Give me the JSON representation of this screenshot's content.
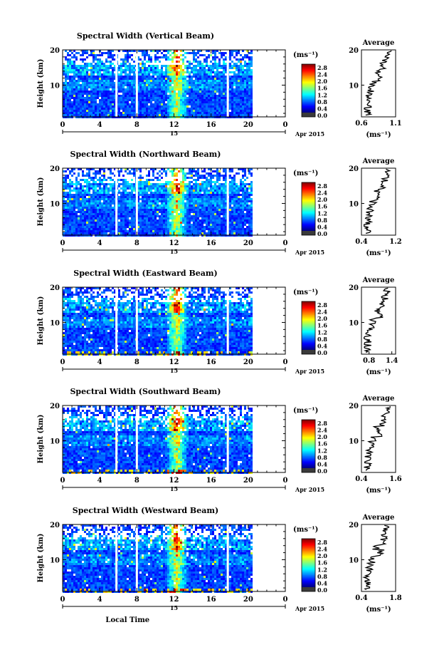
{
  "chart_data": [
    {
      "type": "heatmap",
      "title": "Spectral Width (Vertical Beam)",
      "ylabel": "Height (km)",
      "yticks": [
        "20",
        "10"
      ],
      "xticks": [
        "0",
        "4",
        "8",
        "12",
        "16",
        "20",
        "0"
      ],
      "xlim": [
        0,
        24
      ],
      "ylim": [
        1,
        20
      ],
      "gaps": [
        5.8,
        8.0,
        17.8
      ],
      "data_end": 20.3,
      "date_day": "15",
      "date_month": "Apr 2015",
      "colorbar": {
        "unit": "(ms⁻¹)",
        "ticks": [
          "2.8",
          "2.4",
          "2.0",
          "1.6",
          "1.2",
          "0.8",
          "0.4",
          "0.0"
        ]
      },
      "average": {
        "title": "Average",
        "unit": "(ms⁻¹)",
        "xticks": [
          "0.6",
          "1.1"
        ],
        "xlim": [
          0.6,
          1.1
        ],
        "yticks": [
          "20",
          "10"
        ]
      }
    },
    {
      "type": "heatmap",
      "title": "Spectral Width (Northward Beam)",
      "ylabel": "Height (km)",
      "yticks": [
        "20",
        "10"
      ],
      "xticks": [
        "0",
        "4",
        "8",
        "12",
        "16",
        "20",
        "0"
      ],
      "xlim": [
        0,
        24
      ],
      "ylim": [
        1,
        20
      ],
      "gaps": [
        5.8,
        8.0,
        17.8
      ],
      "data_end": 20.3,
      "date_day": "15",
      "date_month": "Apr 2015",
      "colorbar": {
        "unit": "(ms⁻¹)",
        "ticks": [
          "2.8",
          "2.4",
          "2.0",
          "1.6",
          "1.2",
          "0.8",
          "0.4",
          "0.0"
        ]
      },
      "average": {
        "title": "Average",
        "unit": "(ms⁻¹)",
        "xticks": [
          "0.4",
          "1.2"
        ],
        "xlim": [
          0.4,
          1.2
        ],
        "yticks": [
          "20",
          "10"
        ]
      }
    },
    {
      "type": "heatmap",
      "title": "Spectral Width (Eastward Beam)",
      "ylabel": "Height (km)",
      "yticks": [
        "20",
        "10"
      ],
      "xticks": [
        "0",
        "4",
        "8",
        "12",
        "16",
        "20",
        "0"
      ],
      "xlim": [
        0,
        24
      ],
      "ylim": [
        1,
        20
      ],
      "gaps": [
        5.8,
        8.0,
        17.8
      ],
      "data_end": 20.3,
      "date_day": "15",
      "date_month": "Apr 2015",
      "colorbar": {
        "unit": "(ms⁻¹)",
        "ticks": [
          "2.8",
          "2.4",
          "2.0",
          "1.6",
          "1.2",
          "0.8",
          "0.4",
          "0.0"
        ]
      },
      "average": {
        "title": "Average",
        "unit": "(ms⁻¹)",
        "xticks": [
          "0.8",
          "1.4"
        ],
        "xlim": [
          0.6,
          1.5
        ],
        "yticks": [
          "20",
          "10"
        ]
      }
    },
    {
      "type": "heatmap",
      "title": "Spectral Width (Southward Beam)",
      "ylabel": "Height (km)",
      "yticks": [
        "20",
        "10"
      ],
      "xticks": [
        "0",
        "4",
        "8",
        "12",
        "16",
        "20",
        "0"
      ],
      "xlim": [
        0,
        24
      ],
      "ylim": [
        1,
        20
      ],
      "gaps": [
        5.8,
        8.0,
        17.8
      ],
      "data_end": 20.3,
      "date_day": "15",
      "date_month": "Apr 2015",
      "colorbar": {
        "unit": "(ms⁻¹)",
        "ticks": [
          "2.8",
          "2.4",
          "2.0",
          "1.6",
          "1.2",
          "0.8",
          "0.4",
          "0.0"
        ]
      },
      "average": {
        "title": "Average",
        "unit": "(ms⁻¹)",
        "xticks": [
          "0.4",
          "1.6"
        ],
        "xlim": [
          0.4,
          1.6
        ],
        "yticks": [
          "20",
          "10"
        ]
      }
    },
    {
      "type": "heatmap",
      "title": "Spectral Width (Westward Beam)",
      "ylabel": "Height (km)",
      "yticks": [
        "20",
        "10"
      ],
      "xticks": [
        "0",
        "4",
        "8",
        "12",
        "16",
        "20",
        "0"
      ],
      "xlim": [
        0,
        24
      ],
      "ylim": [
        1,
        20
      ],
      "gaps": [
        5.8,
        8.0,
        17.8
      ],
      "data_end": 20.3,
      "date_day": "15",
      "date_month": "Apr 2015",
      "colorbar": {
        "unit": "(ms⁻¹)",
        "ticks": [
          "2.8",
          "2.4",
          "2.0",
          "1.6",
          "1.2",
          "0.8",
          "0.4",
          "0.0"
        ]
      },
      "average": {
        "title": "Average",
        "unit": "(ms⁻¹)",
        "xticks": [
          "0.4",
          "1.8"
        ],
        "xlim": [
          0.4,
          1.8
        ],
        "yticks": [
          "20",
          "10"
        ]
      },
      "xlabel": "Local Time"
    }
  ],
  "colors": {
    "colormap": [
      "#00007f",
      "#0000ff",
      "#007fff",
      "#00ffff",
      "#7fff7f",
      "#ffff00",
      "#ff7f00",
      "#ff0000",
      "#7f0000"
    ],
    "below_scale": "#3a3a3a",
    "axis": "#000000",
    "gap": "#ffffff"
  }
}
